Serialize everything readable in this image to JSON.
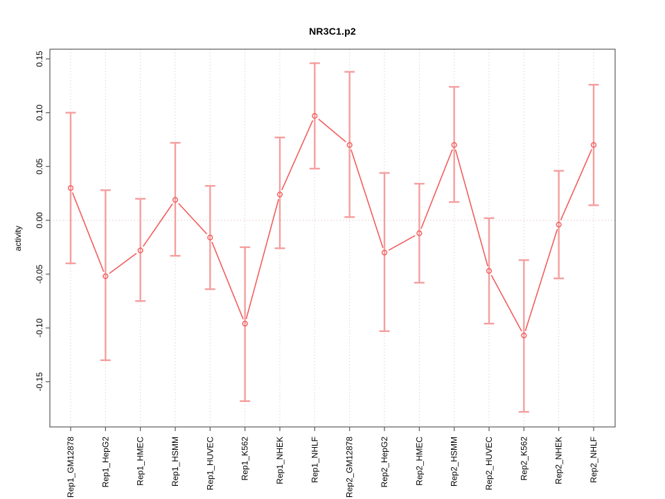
{
  "title": "NR3C1.p2",
  "chart_data": {
    "type": "line",
    "title": "NR3C1.p2",
    "xlabel": "",
    "ylabel": "activity",
    "legend": "none",
    "grid": "dotted vertical gridline at each category; dotted horizontal line at y=0",
    "point_style": "open-circle",
    "error_bars": true,
    "categories": [
      "Rep1_GM12878",
      "Rep1_HepG2",
      "Rep1_HMEC",
      "Rep1_HSMM",
      "Rep1_HUVEC",
      "Rep1_K562",
      "Rep1_NHEK",
      "Rep1_NHLF",
      "Rep2_GM12878",
      "Rep2_HepG2",
      "Rep2_HMEC",
      "Rep2_HSMM",
      "Rep2_HUVEC",
      "Rep2_K562",
      "Rep2_NHEK",
      "Rep2_NHLF"
    ],
    "series": [
      {
        "name": "activity",
        "values": [
          0.03,
          -0.052,
          -0.028,
          0.019,
          -0.016,
          -0.096,
          0.024,
          0.097,
          0.07,
          -0.03,
          -0.012,
          0.07,
          -0.047,
          -0.107,
          -0.004,
          0.07
        ],
        "error_high": [
          0.1,
          0.028,
          0.02,
          0.072,
          0.032,
          -0.025,
          0.077,
          0.146,
          0.138,
          0.044,
          0.034,
          0.124,
          0.002,
          -0.037,
          0.046,
          0.126
        ],
        "error_low": [
          -0.04,
          -0.13,
          -0.075,
          -0.033,
          -0.064,
          -0.168,
          -0.026,
          0.048,
          0.003,
          -0.103,
          -0.058,
          0.017,
          -0.096,
          -0.178,
          -0.054,
          0.014
        ]
      }
    ],
    "ylim": [
      -0.192,
      0.159
    ],
    "yticks": [
      0.15,
      0.1,
      0.05,
      0.0,
      -0.05,
      -0.1,
      -0.15
    ],
    "ytick_labels": [
      "0.15",
      "0.10",
      "0.05",
      "0.00",
      "-0.05",
      "-0.10",
      "-0.15"
    ],
    "colors": {
      "line": "#f25d5d",
      "point": "#f25d5d",
      "error_bar": "#f59e9e",
      "grid": "#d6d6d6",
      "zero_line": "#e6c6c6",
      "axis": "#5a5a5a",
      "text": "#000000"
    }
  }
}
